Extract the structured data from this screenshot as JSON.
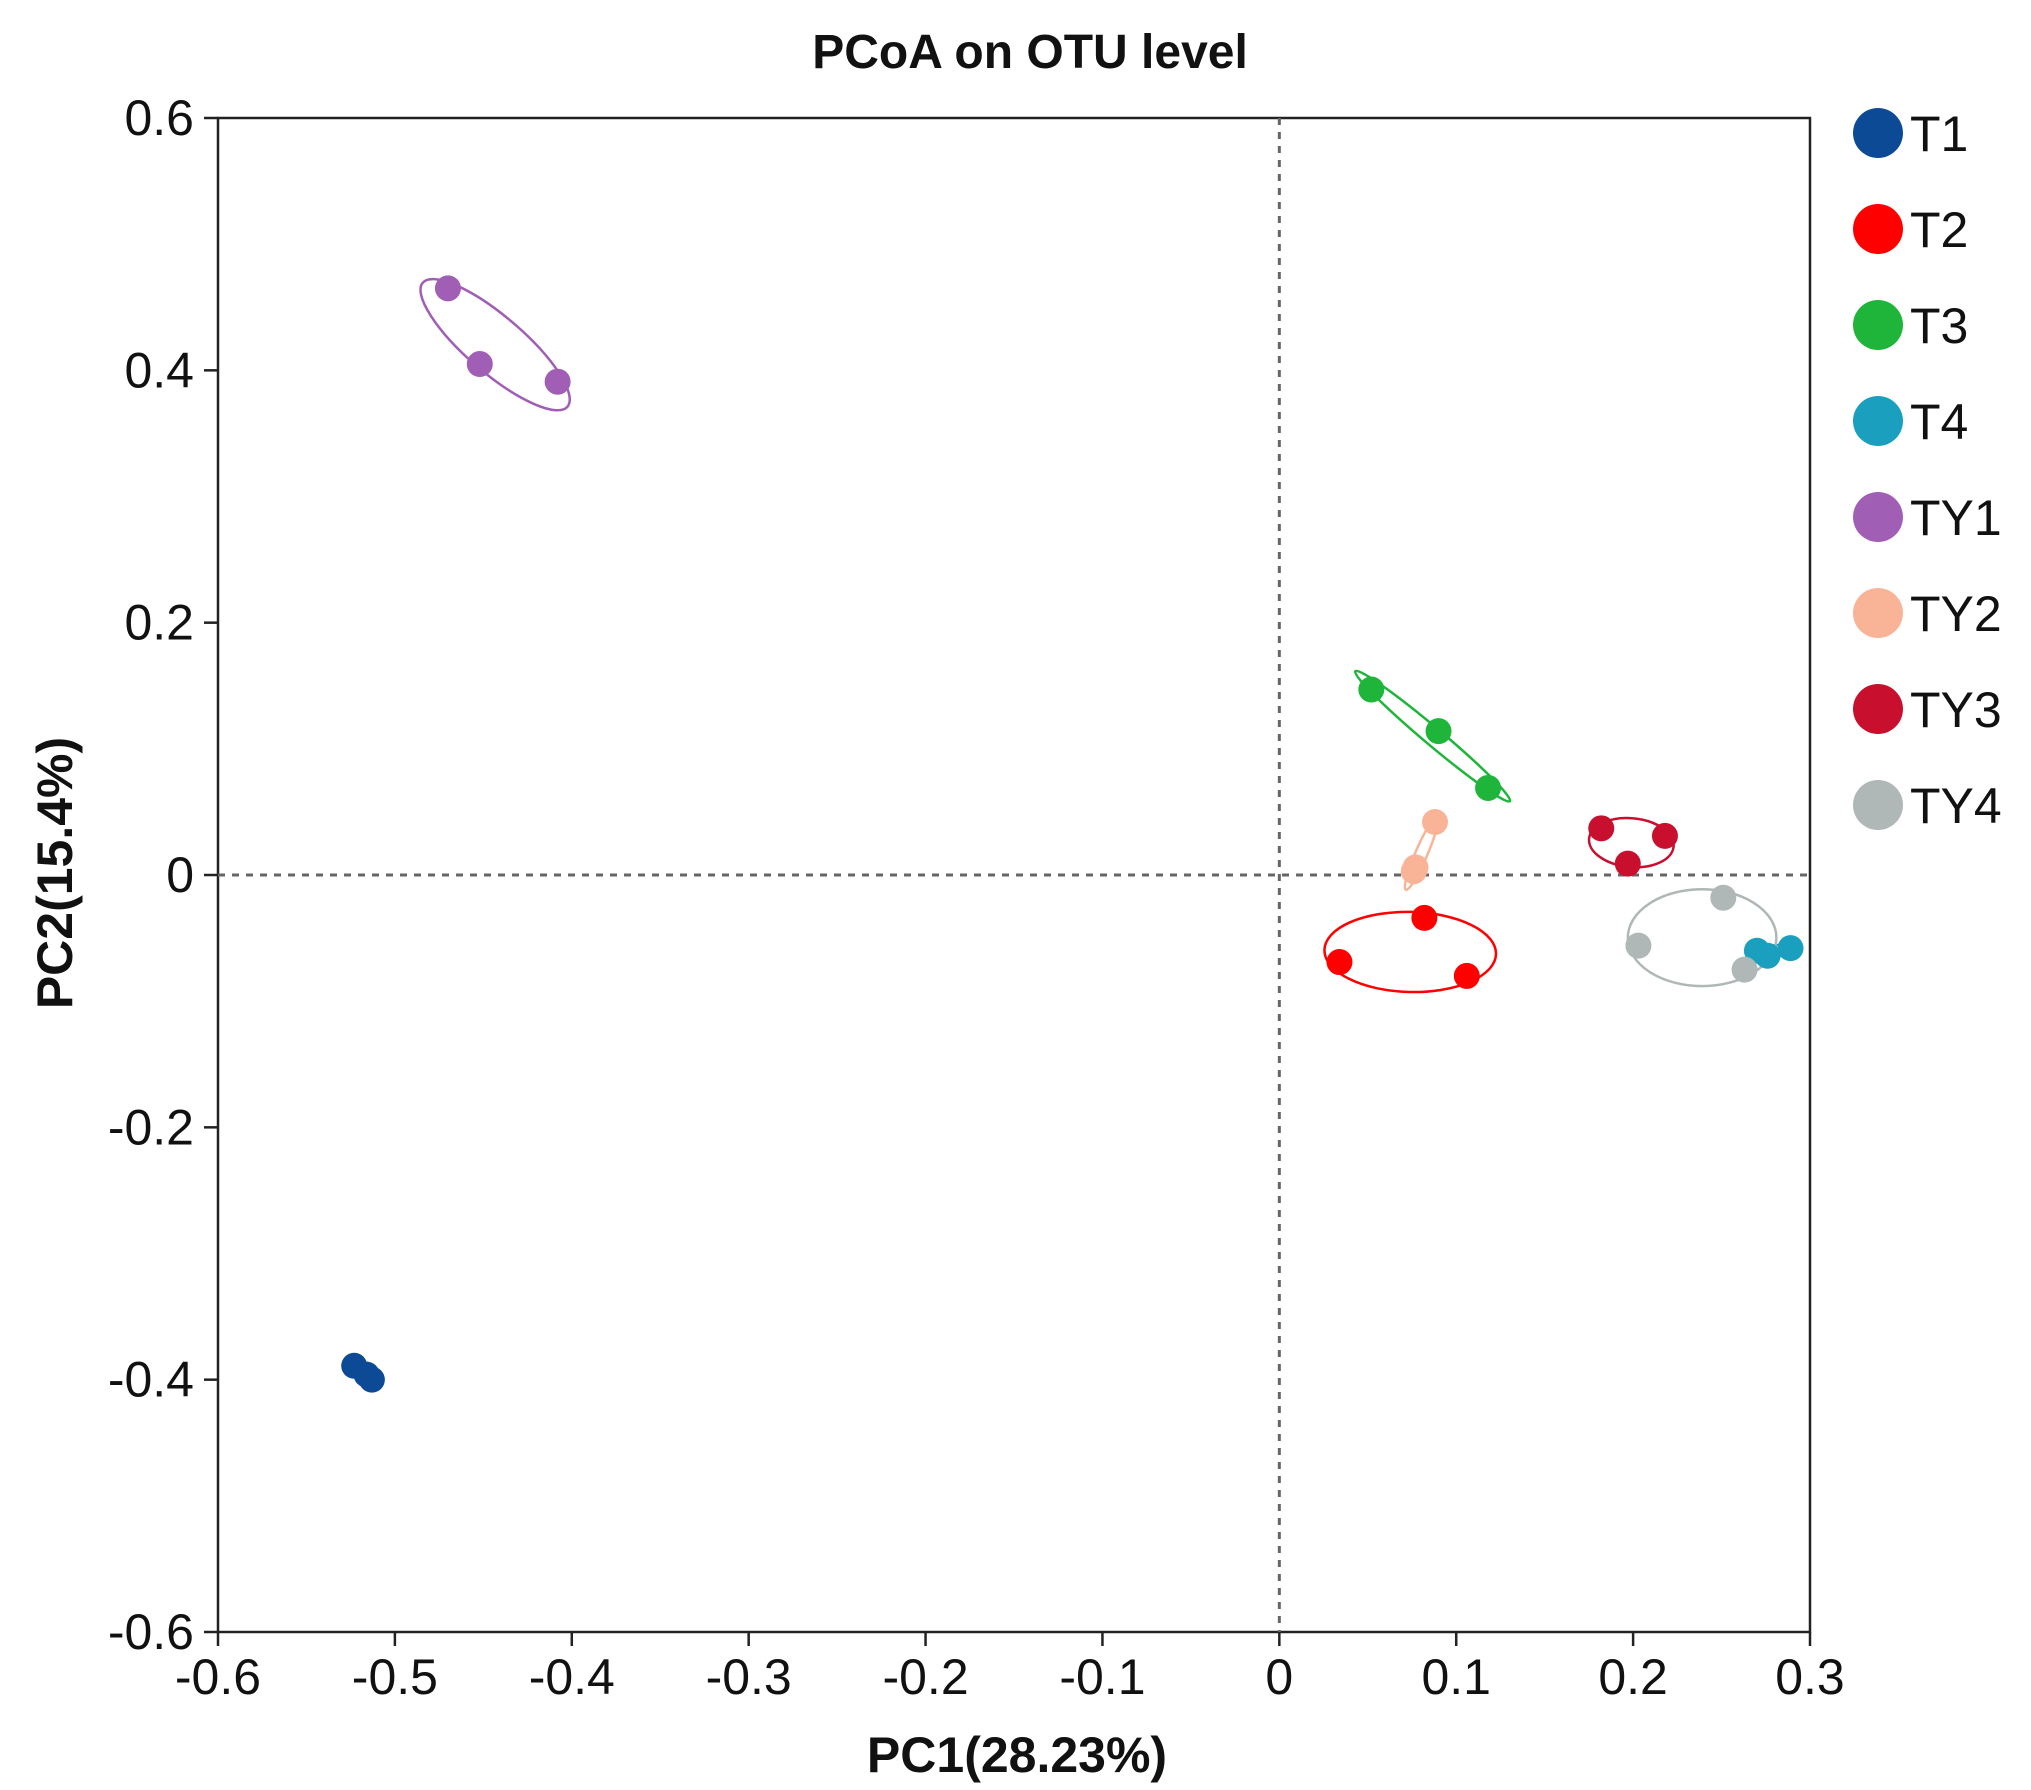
{
  "chart_data": {
    "type": "scatter",
    "title": "PCoA on OTU level",
    "xlabel": "PC1(28.23%)",
    "ylabel": "PC2(15.4%)",
    "xlim": [
      -0.6,
      0.3
    ],
    "ylim": [
      -0.6,
      0.6
    ],
    "xticks": [
      -0.6,
      -0.5,
      -0.4,
      -0.3,
      -0.2,
      -0.1,
      0,
      0.1,
      0.2,
      0.3
    ],
    "xtick_labels": [
      "-0.6",
      "-0.5",
      "-0.4",
      "-0.3",
      "-0.2",
      "-0.1",
      "0",
      "0.1",
      "0.2",
      "0.3"
    ],
    "yticks": [
      0.6,
      0.4,
      0.2,
      0,
      -0.2,
      -0.4,
      -0.6
    ],
    "ytick_labels": [
      "0.6",
      "0.4",
      "0.2",
      "0",
      "-0.2",
      "-0.4",
      "-0.6"
    ],
    "reference_lines": {
      "x": 0,
      "y": 0,
      "style": "dashed"
    },
    "legend_position": "right",
    "series": [
      {
        "name": "T1",
        "color": "#0d4a95",
        "points": [
          [
            -0.523,
            -0.389
          ],
          [
            -0.513,
            -0.4
          ],
          [
            -0.516,
            -0.396
          ]
        ]
      },
      {
        "name": "T2",
        "color": "#ff0000",
        "points": [
          [
            0.034,
            -0.069
          ],
          [
            0.082,
            -0.034
          ],
          [
            0.106,
            -0.08
          ]
        ]
      },
      {
        "name": "T3",
        "color": "#1eb53a",
        "points": [
          [
            0.052,
            0.147
          ],
          [
            0.09,
            0.114
          ],
          [
            0.118,
            0.069
          ]
        ]
      },
      {
        "name": "T4",
        "color": "#1a9fbf",
        "points": [
          [
            0.27,
            -0.06
          ],
          [
            0.289,
            -0.058
          ],
          [
            0.276,
            -0.064
          ]
        ]
      },
      {
        "name": "TY1",
        "color": "#a05eb5",
        "points": [
          [
            -0.47,
            0.465
          ],
          [
            -0.452,
            0.405
          ],
          [
            -0.408,
            0.391
          ]
        ]
      },
      {
        "name": "TY2",
        "color": "#f9b498",
        "points": [
          [
            0.076,
            0.003
          ],
          [
            0.077,
            0.006
          ],
          [
            0.088,
            0.042
          ]
        ]
      },
      {
        "name": "TY3",
        "color": "#c8102e",
        "points": [
          [
            0.182,
            0.037
          ],
          [
            0.197,
            0.009
          ],
          [
            0.218,
            0.031
          ]
        ]
      },
      {
        "name": "TY4",
        "color": "#afb8b7",
        "points": [
          [
            0.203,
            -0.056
          ],
          [
            0.251,
            -0.018
          ],
          [
            0.263,
            -0.075
          ]
        ]
      }
    ]
  }
}
